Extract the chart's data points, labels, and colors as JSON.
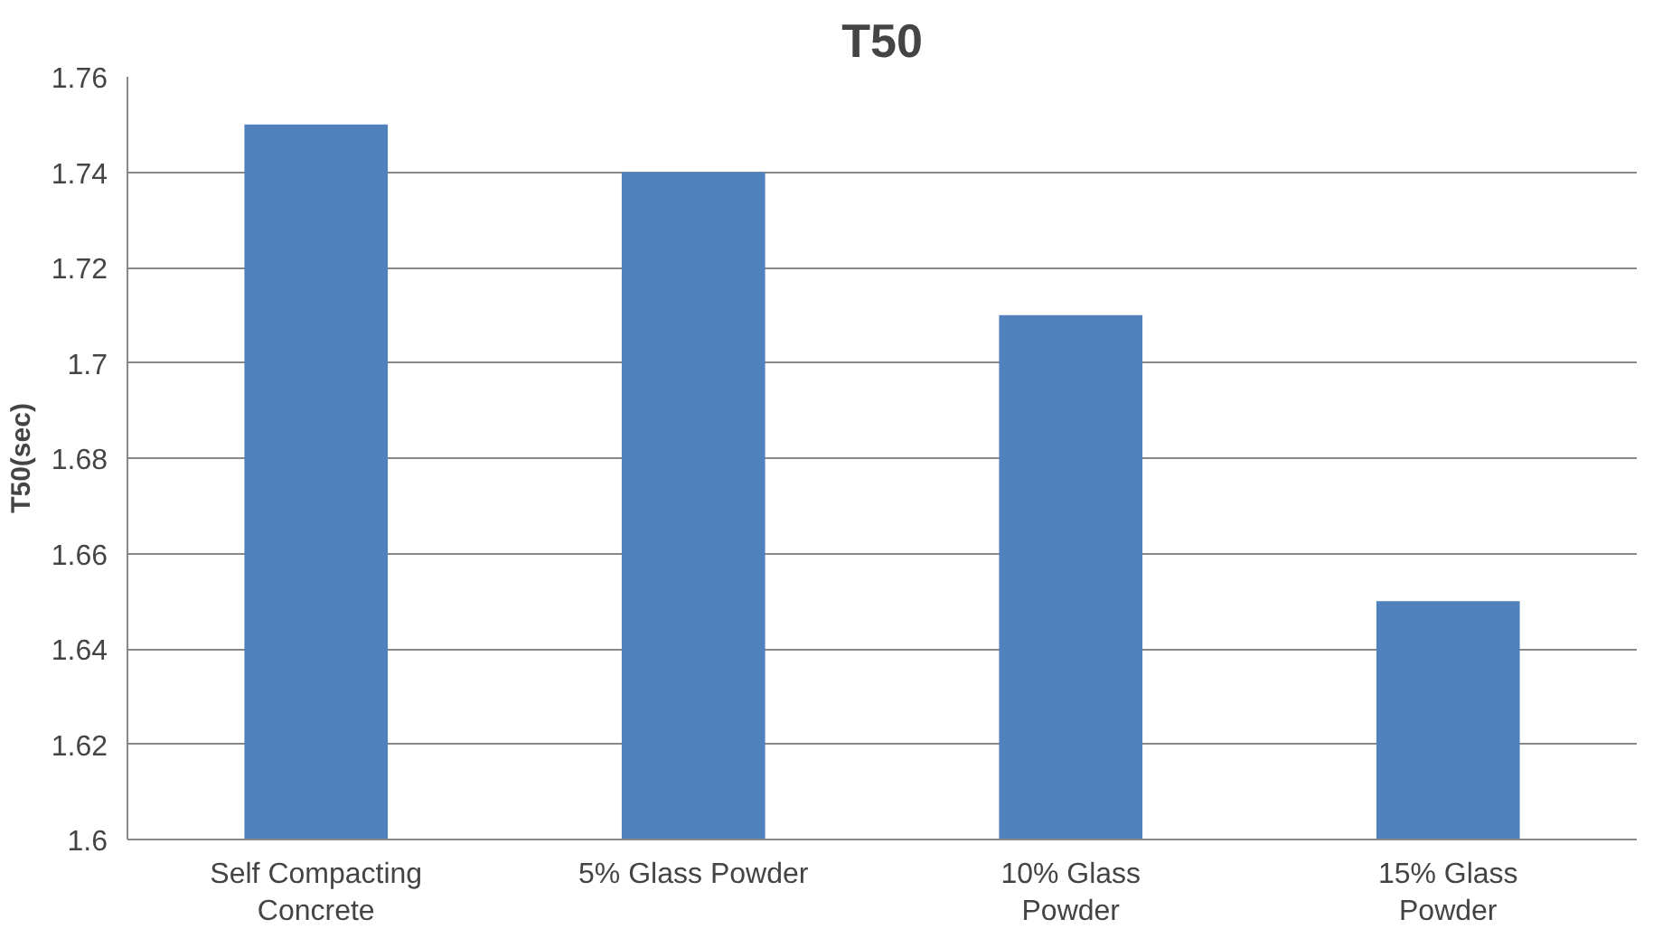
{
  "chart_data": {
    "type": "bar",
    "title": "T50",
    "ylabel": "T50(sec)",
    "categories": [
      "Self Compacting Concrete",
      "5% Glass Powder",
      "10% Glass Powder",
      "15% Glass Powder"
    ],
    "values": [
      1.75,
      1.74,
      1.71,
      1.65
    ],
    "color": "#4f81bd",
    "ylim": [
      1.6,
      1.76
    ],
    "yticks": [
      1.6,
      1.62,
      1.64,
      1.66,
      1.68,
      1.7,
      1.72,
      1.74,
      1.76
    ],
    "grid": "y"
  }
}
